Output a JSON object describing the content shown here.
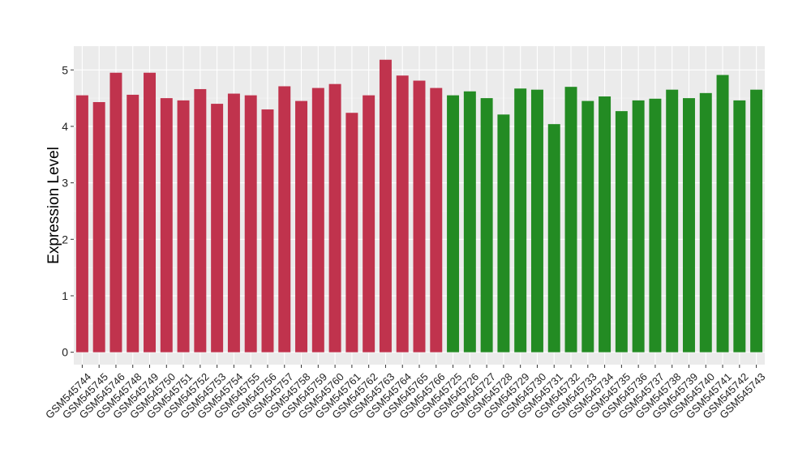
{
  "chart_data": {
    "type": "bar",
    "title": "",
    "xlabel": "",
    "ylabel": "Expression Level",
    "ylim": [
      -0.22,
      5.42
    ],
    "yticks": [
      0,
      1,
      2,
      3,
      4,
      5
    ],
    "grid": true,
    "legend": "none",
    "categories": [
      "GSM545744",
      "GSM545745",
      "GSM545746",
      "GSM545748",
      "GSM545749",
      "GSM545750",
      "GSM545751",
      "GSM545752",
      "GSM545753",
      "GSM545754",
      "GSM545755",
      "GSM545756",
      "GSM545757",
      "GSM545758",
      "GSM545759",
      "GSM545760",
      "GSM545761",
      "GSM545762",
      "GSM545763",
      "GSM545764",
      "GSM545765",
      "GSM545766",
      "GSM545725",
      "GSM545726",
      "GSM545727",
      "GSM545728",
      "GSM545729",
      "GSM545730",
      "GSM545731",
      "GSM545732",
      "GSM545733",
      "GSM545734",
      "GSM545735",
      "GSM545736",
      "GSM545737",
      "GSM545738",
      "GSM545739",
      "GSM545740",
      "GSM545741",
      "GSM545742",
      "GSM545743"
    ],
    "values": [
      4.55,
      4.43,
      4.95,
      4.56,
      4.95,
      4.5,
      4.46,
      4.66,
      4.4,
      4.58,
      4.55,
      4.3,
      4.71,
      4.45,
      4.68,
      4.75,
      4.24,
      4.55,
      5.18,
      4.9,
      4.81,
      4.68,
      4.55,
      4.62,
      4.5,
      4.21,
      4.67,
      4.65,
      4.04,
      4.7,
      4.45,
      4.53,
      4.27,
      4.46,
      4.49,
      4.65,
      4.5,
      4.59,
      4.91,
      4.46,
      4.65
    ],
    "groups": [
      "a",
      "a",
      "a",
      "a",
      "a",
      "a",
      "a",
      "a",
      "a",
      "a",
      "a",
      "a",
      "a",
      "a",
      "a",
      "a",
      "a",
      "a",
      "a",
      "a",
      "a",
      "a",
      "b",
      "b",
      "b",
      "b",
      "b",
      "b",
      "b",
      "b",
      "b",
      "b",
      "b",
      "b",
      "b",
      "b",
      "b",
      "b",
      "b",
      "b",
      "b"
    ],
    "colors": {
      "a": "#c0334d",
      "b": "#238b23",
      "panel_background": "#ebebeb",
      "grid_major": "#ffffff",
      "grid_minor": "#f5f5f5",
      "tick_color": "#333333"
    }
  }
}
